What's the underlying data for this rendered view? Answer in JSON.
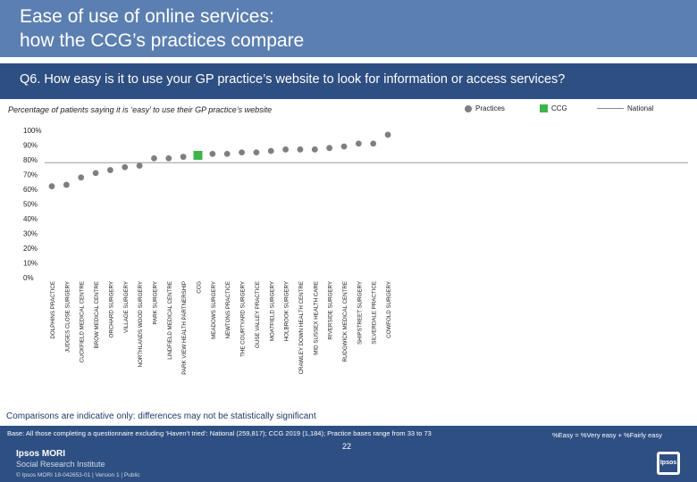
{
  "header": {
    "title": "Ease of use of online services:\nhow the CCG’s practices compare",
    "question": "Q6. How easy is it to use your GP practice’s website to look for information or access services?"
  },
  "subtitle": "Percentage of patients saying it is ‘easy’ to use their GP practice’s website",
  "legend": {
    "practices": "Practices",
    "ccg": "CCG",
    "national": "National"
  },
  "colors": {
    "practice": "#7f7f7f",
    "ccg": "#3cb54a",
    "national": "#9a9a9a",
    "header": "#5b7fb0",
    "question_bar": "#2e4f82"
  },
  "chart_data": {
    "type": "scatter",
    "categories": [
      "DOLPHINS PRACTICE",
      "JUDGES CLOSE SURGERY",
      "CUCKFIELD MEDICAL CENTRE",
      "BROW MEDICAL CENTRE",
      "ORCHARD SURGERY",
      "VILLAGE SURGERY",
      "NORTHLANDS WOOD SURGERY",
      "PARK SURGERY",
      "LINDFIELD MEDICAL CENTRE",
      "PARK VIEW HEALTH PARTNERSHIP",
      "CCG",
      "MEADOWS SURGERY",
      "NEWTONS PRACTICE",
      "THE COURTYARD SURGERY",
      "OUSE VALLEY PRACTICE",
      "MOATFIELD SURGERY",
      "HOLBROOK SURGERY",
      "CRAWLEY DOWN HEALTH CENTRE",
      "MID SUSSEX HEALTH CARE",
      "RIVERSIDE SURGERY",
      "RUDGWICK MEDICAL CENTRE",
      "SHIPSTREET SURGERY",
      "SILVERDALE PRACTICE",
      "COWFOLD SURGERY"
    ],
    "values": [
      62,
      63,
      68,
      71,
      73,
      75,
      76,
      81,
      81,
      82,
      83,
      84,
      84,
      85,
      85,
      86,
      87,
      87,
      87,
      88,
      89,
      91,
      91,
      97
    ],
    "ccg_index": 10,
    "national": 78,
    "yticks": [
      "0%",
      "10%",
      "20%",
      "30%",
      "40%",
      "50%",
      "60%",
      "70%",
      "80%",
      "90%",
      "100%"
    ],
    "ylim": [
      0,
      100
    ]
  },
  "note": "Comparisons are indicative only: differences may not be statistically significant",
  "footer": {
    "base": "Base: All those completing a questionnaire excluding ‘Haven’t tried’: National (259,817); CCG 2019 (1,184); Practice bases range from 33 to 73",
    "right_note": "%Easy = %Very easy + %Fairly easy",
    "page": "22",
    "logo_line1": "Ipsos MORI",
    "logo_line2": "Social Research Institute",
    "copyright": "© Ipsos MORI      18-042653-01 | Version 1 | Public",
    "logo_badge": "Ipsos"
  }
}
